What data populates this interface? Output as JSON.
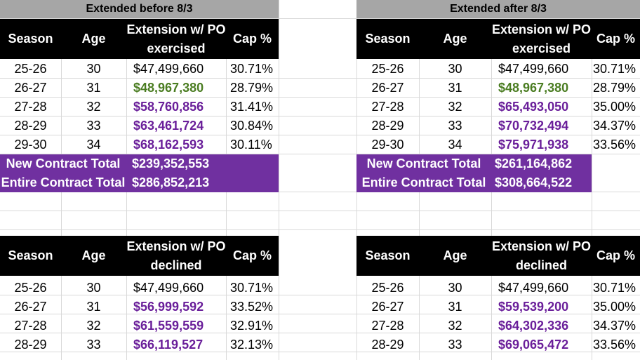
{
  "tables": [
    {
      "title": "Extended before 8/3",
      "headers": {
        "season": "Season",
        "age": "Age",
        "extension": "Extension w/ PO exercised",
        "cap": "Cap %"
      },
      "rows": [
        {
          "season": "25-26",
          "age": "30",
          "amount": "$47,499,660",
          "cap": "30.71%"
        },
        {
          "season": "26-27",
          "age": "31",
          "amount": "$48,967,380",
          "cap": "28.79%"
        },
        {
          "season": "27-28",
          "age": "32",
          "amount": "$58,760,856",
          "cap": "31.41%"
        },
        {
          "season": "28-29",
          "age": "33",
          "amount": "$63,461,724",
          "cap": "30.84%"
        },
        {
          "season": "29-30",
          "age": "34",
          "amount": "$68,162,593",
          "cap": "30.11%"
        }
      ],
      "totals": [
        {
          "label": "New Contract Total",
          "value": "$239,352,553"
        },
        {
          "label": "Entire Contract Total",
          "value": "$286,852,213"
        }
      ]
    },
    {
      "title": "Extended after 8/3",
      "headers": {
        "season": "Season",
        "age": "Age",
        "extension": "Extension w/ PO exercised",
        "cap": "Cap %"
      },
      "rows": [
        {
          "season": "25-26",
          "age": "30",
          "amount": "$47,499,660",
          "cap": "30.71%"
        },
        {
          "season": "26-27",
          "age": "31",
          "amount": "$48,967,380",
          "cap": "28.79%"
        },
        {
          "season": "27-28",
          "age": "32",
          "amount": "$65,493,050",
          "cap": "35.00%"
        },
        {
          "season": "28-29",
          "age": "33",
          "amount": "$70,732,494",
          "cap": "34.37%"
        },
        {
          "season": "29-30",
          "age": "34",
          "amount": "$75,971,938",
          "cap": "33.56%"
        }
      ],
      "totals": [
        {
          "label": "New Contract Total",
          "value": "$261,164,862"
        },
        {
          "label": "Entire Contract Total",
          "value": "$308,664,522"
        }
      ]
    },
    {
      "headers": {
        "season": "Season",
        "age": "Age",
        "extension": "Extension w/ PO declined",
        "cap": "Cap %"
      },
      "rows": [
        {
          "season": "25-26",
          "age": "30",
          "amount": "$47,499,660",
          "cap": "30.71%"
        },
        {
          "season": "26-27",
          "age": "31",
          "amount": "$56,999,592",
          "cap": "33.52%"
        },
        {
          "season": "27-28",
          "age": "32",
          "amount": "$61,559,559",
          "cap": "32.91%"
        },
        {
          "season": "28-29",
          "age": "33",
          "amount": "$66,119,527",
          "cap": "32.13%"
        }
      ]
    },
    {
      "headers": {
        "season": "Season",
        "age": "Age",
        "extension": "Extension w/ PO declined",
        "cap": "Cap %"
      },
      "rows": [
        {
          "season": "25-26",
          "age": "30",
          "amount": "$47,499,660",
          "cap": "30.71%"
        },
        {
          "season": "26-27",
          "age": "31",
          "amount": "$59,539,200",
          "cap": "35.00%"
        },
        {
          "season": "27-28",
          "age": "32",
          "amount": "$64,302,336",
          "cap": "34.37%"
        },
        {
          "season": "28-29",
          "age": "33",
          "amount": "$69,065,472",
          "cap": "33.56%"
        }
      ]
    }
  ],
  "colors": {
    "header_bg": "#000000",
    "title_bg": "#a6a6a6",
    "total_bg": "#7030a0",
    "green": "#4b7d22",
    "purple": "#6a1f9a"
  }
}
